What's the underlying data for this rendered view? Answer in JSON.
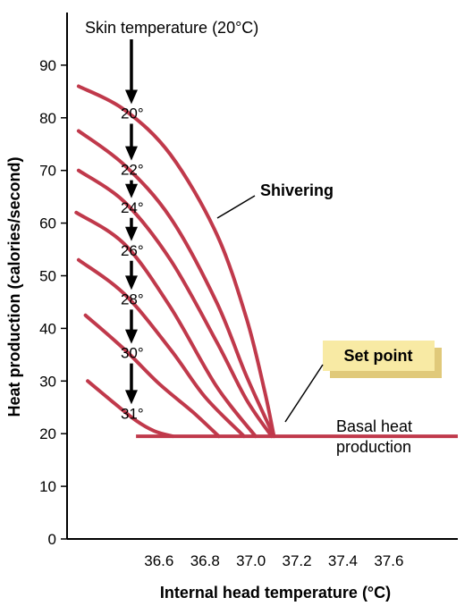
{
  "chart_data": {
    "type": "line",
    "title": "",
    "xlabel": "Internal head temperature (°C)",
    "ylabel": "Heat production (calories/second)",
    "xlim": [
      36.2,
      37.9
    ],
    "ylim": [
      0,
      100
    ],
    "x_ticks": [
      "36.6",
      "36.8",
      "37.0",
      "37.2",
      "37.4",
      "37.6"
    ],
    "x_tick_values": [
      36.6,
      36.8,
      37.0,
      37.2,
      37.4,
      37.6
    ],
    "y_ticks": [
      "0",
      "10",
      "20",
      "30",
      "40",
      "50",
      "60",
      "70",
      "80",
      "90"
    ],
    "y_tick_values": [
      0,
      10,
      20,
      30,
      40,
      50,
      60,
      70,
      80,
      90
    ],
    "line_color": "#c0394b",
    "arrow_x": 36.48,
    "series": [
      {
        "label": "20°",
        "x": [
          36.25,
          36.45,
          36.65,
          36.85,
          36.98,
          37.06,
          37.1
        ],
        "y": [
          86,
          81.5,
          73,
          58,
          42,
          28,
          19.5
        ]
      },
      {
        "label": "22°",
        "x": [
          36.25,
          36.45,
          36.65,
          36.85,
          36.98,
          37.1
        ],
        "y": [
          77.5,
          71,
          61,
          45,
          31,
          19.5
        ]
      },
      {
        "label": "24°",
        "x": [
          36.25,
          36.45,
          36.65,
          36.85,
          36.98,
          37.09
        ],
        "y": [
          70,
          64,
          53,
          37.5,
          26.5,
          19.5
        ]
      },
      {
        "label": "26°",
        "x": [
          36.24,
          36.45,
          36.65,
          36.85,
          37.02
        ],
        "y": [
          62,
          56,
          44,
          29,
          19.5
        ]
      },
      {
        "label": "28°",
        "x": [
          36.25,
          36.45,
          36.65,
          36.8,
          36.97
        ],
        "y": [
          53,
          46.5,
          36,
          27,
          19.5
        ]
      },
      {
        "label": "30°",
        "x": [
          36.28,
          36.45,
          36.6,
          36.75,
          36.86
        ],
        "y": [
          42.5,
          36,
          29.5,
          24,
          19.5
        ]
      },
      {
        "label": "31°",
        "x": [
          36.29,
          36.4,
          36.5,
          36.58,
          36.66
        ],
        "y": [
          30,
          26,
          22.5,
          20.5,
          19.5
        ]
      }
    ],
    "basal": {
      "x": [
        36.5,
        37.9
      ],
      "y": [
        19.5,
        19.5
      ]
    },
    "annotations": {
      "skin_temperature": "Skin temperature (20°C)",
      "shivering": "Shivering",
      "set_point": "Set point",
      "basal_line1": "Basal heat",
      "basal_line2": "production"
    },
    "set_point_box_color": "#f8eaa4",
    "set_point_shadow_color": "#e0c97a"
  }
}
